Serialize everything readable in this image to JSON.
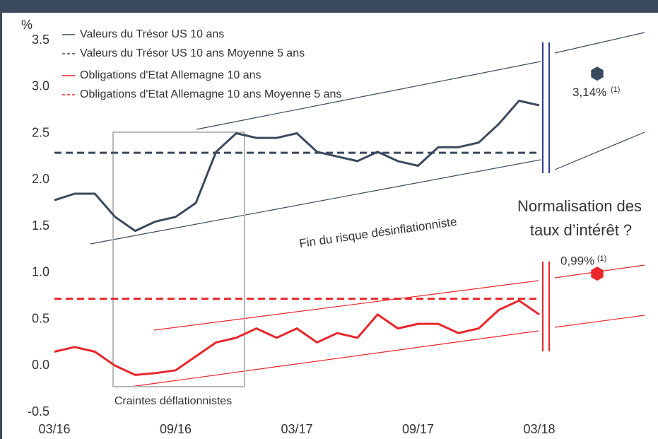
{
  "chart_data": {
    "type": "line",
    "y_unit": "%",
    "x": [
      "03/16",
      "04/16",
      "05/16",
      "06/16",
      "07/16",
      "08/16",
      "09/16",
      "10/16",
      "11/16",
      "12/16",
      "01/17",
      "02/17",
      "03/17",
      "04/17",
      "05/17",
      "06/17",
      "07/17",
      "08/17",
      "09/17",
      "10/17",
      "11/17",
      "12/17",
      "01/18",
      "02/18",
      "03/18"
    ],
    "xticks": [
      "03/16",
      "09/16",
      "03/17",
      "09/17",
      "03/18"
    ],
    "ylim": [
      -0.5,
      3.5
    ],
    "yticks": [
      {
        "value": 3.5,
        "label": "3.5"
      },
      {
        "value": 3,
        "label": "3.0"
      },
      {
        "value": 2.5,
        "label": "2.5"
      },
      {
        "value": 2,
        "label": "2.0"
      },
      {
        "value": 1.5,
        "label": "1.5"
      },
      {
        "value": 1,
        "label": "1.0"
      },
      {
        "value": 0.5,
        "label": "0.5"
      },
      {
        "value": 0,
        "label": "0.0"
      },
      {
        "value": -0.5,
        "label": "-0.5"
      }
    ],
    "legend": "top-left",
    "series": [
      {
        "name": "Valeurs du Trésor US 10 ans",
        "color": "#3a4a5e",
        "dashed": false,
        "values": [
          1.78,
          1.85,
          1.85,
          1.6,
          1.45,
          1.55,
          1.6,
          1.75,
          2.3,
          2.5,
          2.45,
          2.45,
          2.5,
          2.3,
          2.25,
          2.2,
          2.3,
          2.2,
          2.15,
          2.35,
          2.35,
          2.4,
          2.6,
          2.85,
          2.8
        ]
      },
      {
        "name": "Valeurs du Trésor US 10 ans Moyenne 5 ans",
        "color": "#3a4a5e",
        "dashed": true,
        "value": 2.29
      },
      {
        "name": "Obligations d'Etat Allemagne 10 ans",
        "color": "#e8262b",
        "dashed": false,
        "values": [
          0.15,
          0.2,
          0.15,
          0.0,
          -0.1,
          -0.08,
          -0.05,
          0.1,
          0.25,
          0.3,
          0.4,
          0.3,
          0.4,
          0.25,
          0.35,
          0.3,
          0.55,
          0.4,
          0.45,
          0.45,
          0.35,
          0.4,
          0.6,
          0.7,
          0.55
        ]
      },
      {
        "name": "Obligations d'Etat Allemagne 10 ans Moyenne 5 ans",
        "color": "#e8262b",
        "dashed": true,
        "value": 0.72
      }
    ],
    "targets": [
      {
        "value": 3.14,
        "label": "3,14%",
        "note": "(1)",
        "color": "#3a4a5e"
      },
      {
        "value": 0.99,
        "label": "0,99%",
        "note": "(1)",
        "color": "#e8262b"
      }
    ],
    "annotations": [
      "Fin du risque désinflationniste",
      "Normalisation des",
      "taux d’intérêt ?",
      "Craintes déflationnistes"
    ]
  }
}
